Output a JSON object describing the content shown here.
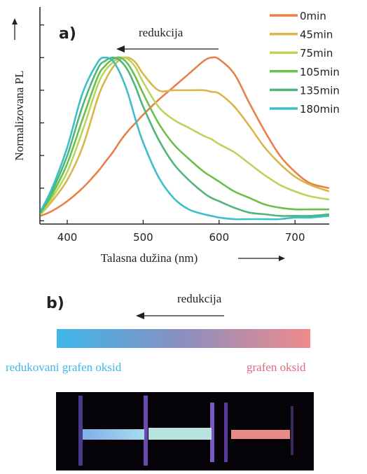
{
  "chart_data": {
    "type": "line",
    "panel_label": "a)",
    "annotation": "redukcija",
    "xlabel": "Talasna dužina (nm)",
    "ylabel": "Normalizovana PL",
    "x": [
      365,
      380,
      400,
      420,
      440,
      450,
      460,
      470,
      480,
      490,
      500,
      520,
      540,
      560,
      580,
      590,
      600,
      620,
      640,
      660,
      680,
      700,
      720,
      745
    ],
    "xlim": [
      364,
      745
    ],
    "xticks": [
      400,
      500,
      600,
      700
    ],
    "ylim": [
      -0.02,
      1.31
    ],
    "yticks": [
      0,
      0.2,
      0.4,
      0.6,
      0.8,
      1.0,
      1.2
    ],
    "series": [
      {
        "name": "0min",
        "color": "#e9804a",
        "values": [
          0.03,
          0.06,
          0.12,
          0.2,
          0.3,
          0.36,
          0.42,
          0.49,
          0.55,
          0.6,
          0.65,
          0.74,
          0.82,
          0.9,
          0.98,
          1.0,
          0.99,
          0.9,
          0.72,
          0.55,
          0.4,
          0.3,
          0.23,
          0.2
        ]
      },
      {
        "name": "45min",
        "color": "#d9b64a",
        "values": [
          0.04,
          0.12,
          0.25,
          0.45,
          0.75,
          0.86,
          0.94,
          0.99,
          1.0,
          0.97,
          0.9,
          0.8,
          0.8,
          0.8,
          0.8,
          0.79,
          0.78,
          0.7,
          0.58,
          0.45,
          0.35,
          0.27,
          0.22,
          0.18
        ]
      },
      {
        "name": "75min",
        "color": "#b7d65a",
        "values": [
          0.04,
          0.14,
          0.3,
          0.55,
          0.83,
          0.92,
          0.97,
          1.0,
          0.99,
          0.94,
          0.85,
          0.7,
          0.62,
          0.57,
          0.52,
          0.5,
          0.47,
          0.42,
          0.35,
          0.28,
          0.22,
          0.18,
          0.15,
          0.13
        ]
      },
      {
        "name": "105min",
        "color": "#6cbf4a",
        "values": [
          0.05,
          0.16,
          0.35,
          0.62,
          0.88,
          0.95,
          0.99,
          1.0,
          0.96,
          0.88,
          0.78,
          0.6,
          0.47,
          0.38,
          0.3,
          0.27,
          0.24,
          0.18,
          0.14,
          0.1,
          0.08,
          0.07,
          0.07,
          0.07
        ]
      },
      {
        "name": "135min",
        "color": "#4fb57a",
        "values": [
          0.05,
          0.18,
          0.4,
          0.7,
          0.93,
          0.98,
          1.0,
          0.98,
          0.92,
          0.82,
          0.7,
          0.5,
          0.35,
          0.25,
          0.17,
          0.14,
          0.12,
          0.08,
          0.05,
          0.04,
          0.03,
          0.03,
          0.03,
          0.04
        ]
      },
      {
        "name": "180min",
        "color": "#3bbfc9",
        "values": [
          0.06,
          0.2,
          0.45,
          0.78,
          0.97,
          1.0,
          0.98,
          0.9,
          0.78,
          0.62,
          0.48,
          0.27,
          0.14,
          0.07,
          0.04,
          0.03,
          0.02,
          0.01,
          0.01,
          0.01,
          0.01,
          0.02,
          0.02,
          0.03
        ]
      }
    ]
  },
  "panel_b": {
    "panel_label": "b)",
    "annotation": "redukcija",
    "left_label": "redukovani grafen oksid",
    "right_label": "grafen oksid"
  }
}
